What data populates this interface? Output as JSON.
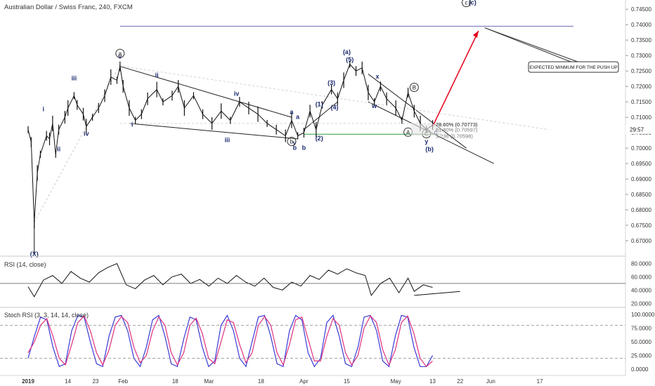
{
  "chart_data": {
    "type": "line",
    "title": "Australian Dollar / Swiss Franc, 240, FXCM",
    "price_axis": {
      "range": [
        0.665,
        0.748
      ],
      "ticks": [
        "0.74500",
        "0.74000",
        "0.73500",
        "0.73000",
        "0.72500",
        "0.72000",
        "0.71500",
        "0.71000",
        "0.70500",
        "0.70000",
        "0.69500",
        "0.69000",
        "0.68500",
        "0.68000",
        "0.67500",
        "0.67000"
      ],
      "countdown": "29:57"
    },
    "time_axis": [
      "2019",
      "14",
      "23",
      "Feb",
      "18",
      "Mar",
      "18",
      "Apr",
      "15",
      "May",
      "13",
      "22",
      "Jun",
      "17"
    ],
    "price_series": [
      {
        "d": "2019-01-01",
        "v": 0.706
      },
      {
        "d": "2019-01-02",
        "v": 0.702
      },
      {
        "d": "2019-01-03",
        "v": 0.676
      },
      {
        "d": "2019-01-04",
        "v": 0.692
      },
      {
        "d": "2019-01-05",
        "v": 0.698
      },
      {
        "d": "2019-01-07",
        "v": 0.704
      },
      {
        "d": "2019-01-08",
        "v": 0.703
      },
      {
        "d": "2019-01-09",
        "v": 0.708
      },
      {
        "d": "2019-01-10",
        "v": 0.698
      },
      {
        "d": "2019-01-11",
        "v": 0.706
      },
      {
        "d": "2019-01-13",
        "v": 0.71
      },
      {
        "d": "2019-01-14",
        "v": 0.713
      },
      {
        "d": "2019-01-16",
        "v": 0.717
      },
      {
        "d": "2019-01-17",
        "v": 0.714
      },
      {
        "d": "2019-01-19",
        "v": 0.711
      },
      {
        "d": "2019-01-20",
        "v": 0.707
      },
      {
        "d": "2019-01-22",
        "v": 0.71
      },
      {
        "d": "2019-01-24",
        "v": 0.713
      },
      {
        "d": "2019-01-26",
        "v": 0.717
      },
      {
        "d": "2019-01-28",
        "v": 0.723
      },
      {
        "d": "2019-01-30",
        "v": 0.722
      },
      {
        "d": "2019-01-31",
        "v": 0.7265
      },
      {
        "d": "2019-02-01",
        "v": 0.72
      },
      {
        "d": "2019-02-03",
        "v": 0.713
      },
      {
        "d": "2019-02-05",
        "v": 0.709
      },
      {
        "d": "2019-02-07",
        "v": 0.711
      },
      {
        "d": "2019-02-09",
        "v": 0.716
      },
      {
        "d": "2019-02-12",
        "v": 0.719
      },
      {
        "d": "2019-02-14",
        "v": 0.715
      },
      {
        "d": "2019-02-17",
        "v": 0.717
      },
      {
        "d": "2019-02-19",
        "v": 0.72
      },
      {
        "d": "2019-02-21",
        "v": 0.713
      },
      {
        "d": "2019-02-24",
        "v": 0.717
      },
      {
        "d": "2019-02-27",
        "v": 0.711
      },
      {
        "d": "2019-03-02",
        "v": 0.708
      },
      {
        "d": "2019-03-05",
        "v": 0.712
      },
      {
        "d": "2019-03-08",
        "v": 0.709
      },
      {
        "d": "2019-03-11",
        "v": 0.715
      },
      {
        "d": "2019-03-14",
        "v": 0.713
      },
      {
        "d": "2019-03-17",
        "v": 0.711
      },
      {
        "d": "2019-03-20",
        "v": 0.708
      },
      {
        "d": "2019-03-23",
        "v": 0.706
      },
      {
        "d": "2019-03-26",
        "v": 0.704
      },
      {
        "d": "2019-03-28",
        "v": 0.709
      },
      {
        "d": "2019-03-30",
        "v": 0.704
      },
      {
        "d": "2019-04-01",
        "v": 0.705
      },
      {
        "d": "2019-04-03",
        "v": 0.712
      },
      {
        "d": "2019-04-05",
        "v": 0.706
      },
      {
        "d": "2019-04-07",
        "v": 0.714
      },
      {
        "d": "2019-04-10",
        "v": 0.719
      },
      {
        "d": "2019-04-12",
        "v": 0.716
      },
      {
        "d": "2019-04-14",
        "v": 0.722
      },
      {
        "d": "2019-04-16",
        "v": 0.7272
      },
      {
        "d": "2019-04-18",
        "v": 0.725
      },
      {
        "d": "2019-04-20",
        "v": 0.726
      },
      {
        "d": "2019-04-22",
        "v": 0.718
      },
      {
        "d": "2019-04-24",
        "v": 0.715
      },
      {
        "d": "2019-04-26",
        "v": 0.72
      },
      {
        "d": "2019-04-28",
        "v": 0.716
      },
      {
        "d": "2019-05-01",
        "v": 0.713
      },
      {
        "d": "2019-05-03",
        "v": 0.709
      },
      {
        "d": "2019-05-05",
        "v": 0.718
      },
      {
        "d": "2019-05-07",
        "v": 0.712
      },
      {
        "d": "2019-05-09",
        "v": 0.708
      },
      {
        "d": "2019-05-11",
        "v": 0.706
      },
      {
        "d": "2019-05-13",
        "v": 0.7075
      }
    ],
    "rsi_panel": {
      "label": "RSI (14, close)",
      "ticks": [
        "80.0000",
        "60.0000",
        "40.0000",
        "20.0000"
      ],
      "range": [
        15,
        90
      ],
      "series": [
        {
          "d": "2019-01-01",
          "v": 45
        },
        {
          "d": "2019-01-03",
          "v": 30
        },
        {
          "d": "2019-01-06",
          "v": 55
        },
        {
          "d": "2019-01-09",
          "v": 62
        },
        {
          "d": "2019-01-12",
          "v": 50
        },
        {
          "d": "2019-01-15",
          "v": 68
        },
        {
          "d": "2019-01-18",
          "v": 58
        },
        {
          "d": "2019-01-21",
          "v": 52
        },
        {
          "d": "2019-01-24",
          "v": 66
        },
        {
          "d": "2019-01-27",
          "v": 74
        },
        {
          "d": "2019-01-30",
          "v": 80
        },
        {
          "d": "2019-02-02",
          "v": 48
        },
        {
          "d": "2019-02-05",
          "v": 42
        },
        {
          "d": "2019-02-08",
          "v": 55
        },
        {
          "d": "2019-02-11",
          "v": 62
        },
        {
          "d": "2019-02-14",
          "v": 48
        },
        {
          "d": "2019-02-17",
          "v": 60
        },
        {
          "d": "2019-02-20",
          "v": 64
        },
        {
          "d": "2019-02-23",
          "v": 50
        },
        {
          "d": "2019-02-26",
          "v": 56
        },
        {
          "d": "2019-03-01",
          "v": 46
        },
        {
          "d": "2019-03-04",
          "v": 58
        },
        {
          "d": "2019-03-07",
          "v": 50
        },
        {
          "d": "2019-03-10",
          "v": 62
        },
        {
          "d": "2019-03-13",
          "v": 52
        },
        {
          "d": "2019-03-16",
          "v": 46
        },
        {
          "d": "2019-03-19",
          "v": 58
        },
        {
          "d": "2019-03-22",
          "v": 44
        },
        {
          "d": "2019-03-25",
          "v": 40
        },
        {
          "d": "2019-03-28",
          "v": 52
        },
        {
          "d": "2019-03-31",
          "v": 46
        },
        {
          "d": "2019-04-03",
          "v": 62
        },
        {
          "d": "2019-04-06",
          "v": 56
        },
        {
          "d": "2019-04-09",
          "v": 70
        },
        {
          "d": "2019-04-12",
          "v": 64
        },
        {
          "d": "2019-04-15",
          "v": 72
        },
        {
          "d": "2019-04-18",
          "v": 66
        },
        {
          "d": "2019-04-21",
          "v": 62
        },
        {
          "d": "2019-04-23",
          "v": 32
        },
        {
          "d": "2019-04-26",
          "v": 50
        },
        {
          "d": "2019-04-29",
          "v": 58
        },
        {
          "d": "2019-05-02",
          "v": 36
        },
        {
          "d": "2019-05-05",
          "v": 58
        },
        {
          "d": "2019-05-07",
          "v": 38
        },
        {
          "d": "2019-05-10",
          "v": 48
        },
        {
          "d": "2019-05-13",
          "v": 44
        }
      ]
    },
    "stoch_panel": {
      "label": "Stoch RSI (3, 3, 14, 14, close)",
      "ticks": [
        "100.0000",
        "75.0000",
        "50.0000",
        "25.0000",
        "0.0000"
      ],
      "range": [
        -10,
        110
      ],
      "k_values": [
        20,
        60,
        95,
        90,
        40,
        5,
        10,
        70,
        98,
        95,
        50,
        10,
        5,
        60,
        95,
        98,
        70,
        20,
        5,
        40,
        90,
        98,
        60,
        10,
        5,
        55,
        95,
        90,
        40,
        5,
        15,
        80,
        98,
        70,
        20,
        5,
        50,
        95,
        98,
        60,
        10,
        5,
        70,
        98,
        90,
        30,
        5,
        20,
        85,
        98,
        60,
        10,
        5,
        40,
        95,
        98,
        70,
        15,
        5,
        60,
        98,
        95,
        40,
        5,
        5,
        25
      ],
      "d_values": [
        30,
        50,
        80,
        92,
        60,
        20,
        8,
        45,
        85,
        97,
        70,
        30,
        8,
        35,
        80,
        96,
        85,
        40,
        12,
        25,
        70,
        95,
        80,
        30,
        8,
        30,
        80,
        93,
        65,
        20,
        10,
        50,
        90,
        85,
        45,
        12,
        30,
        80,
        96,
        80,
        30,
        8,
        45,
        90,
        95,
        55,
        15,
        15,
        60,
        92,
        80,
        30,
        8,
        25,
        75,
        97,
        85,
        35,
        8,
        35,
        85,
        97,
        65,
        20,
        5,
        15
      ]
    },
    "annotations": {
      "wave_labels": [
        "(X)",
        "i",
        "ii",
        "iii",
        "iv",
        "v",
        "a",
        "i",
        "ii",
        "iii",
        "iv",
        "v",
        "b",
        "a",
        "b",
        "(1)",
        "(2)",
        "(3)",
        "(4)",
        "(5)",
        "(a)",
        "w",
        "x",
        "y",
        "(b)",
        "c",
        "(c)"
      ],
      "circled_labels": [
        "a",
        "b",
        "c",
        "A",
        "B",
        "C"
      ],
      "fib_labels": [
        "78.60% (0.70773)",
        "61.80% (0.70597)",
        "1.236 (0.70598)"
      ],
      "callout": "EXPECTED MINMUM FOR THE PUSH UP"
    }
  },
  "colors": {
    "wave_label": "#1a2a6e",
    "arrow": "#e4001b",
    "fib_line": "#2e9e3a",
    "target_line": "#6b6bb8",
    "k_line": "#3b3bd6",
    "d_line": "#e0307e"
  }
}
